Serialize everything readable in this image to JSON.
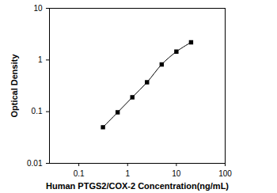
{
  "chart_data": {
    "type": "line",
    "xlabel": "Human PTGS2/COX-2 Concentration(ng/mL)",
    "ylabel": "Optical Density",
    "x": [
      0.3125,
      0.625,
      1.25,
      2.5,
      5,
      10,
      20
    ],
    "values": [
      0.05,
      0.097,
      0.19,
      0.37,
      0.82,
      1.45,
      2.2
    ],
    "color": "#000000",
    "marker": "square",
    "line_style": "solid",
    "log": true,
    "grid": false,
    "xlim": [
      0.025,
      100
    ],
    "xticks": [
      0.1,
      1,
      10,
      100
    ],
    "ylim": [
      0.01,
      10
    ],
    "yticks": [
      0.01,
      0.1,
      1,
      10
    ]
  }
}
